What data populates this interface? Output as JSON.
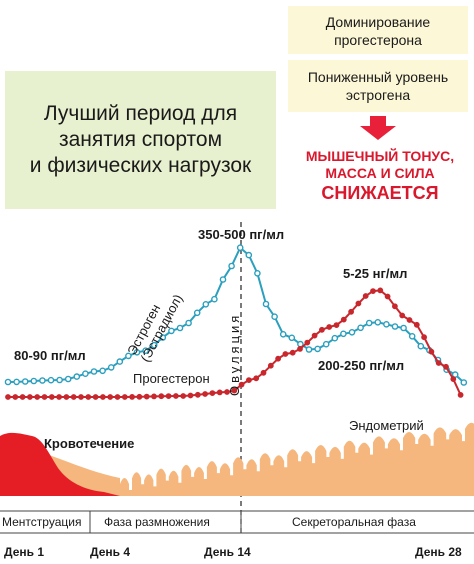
{
  "boxes": {
    "best_period": [
      "Лучший период для",
      "занятия спортом",
      "и физических нагрузок"
    ],
    "progesterone_dominance": [
      "Доминирование",
      "прогестерона"
    ],
    "low_estrogen": [
      "Пониженный уровень",
      "эстрогена"
    ]
  },
  "effect": {
    "line1": "МЫШЕЧНЫЙ ТОНУС,",
    "line2": "МАССА И СИЛА",
    "line3": "СНИЖАЕТСЯ"
  },
  "labels": {
    "estrogen_line1": "Эстроген",
    "estrogen_line2": "(Эстрадиол)",
    "estrogen_peak": "350-500 пг/мл",
    "estrogen_start": "80-90 пг/мл",
    "estrogen_luteal": "200-250 пг/мл",
    "progesterone": "Прогестерон",
    "progesterone_peak": "5-25 нг/мл",
    "ovulation": "Овуляция",
    "endometrium": "Эндометрий",
    "bleeding": "Кровотечение"
  },
  "phases": [
    "Ментструация",
    "Фаза размножения",
    "Секреторальная фаза"
  ],
  "days": [
    "День 1",
    "День 4",
    "День 14",
    "День 28"
  ],
  "colors": {
    "estrogen": "#2b9fbe",
    "progesterone": "#c8282d",
    "bleeding": "#e51e25",
    "endometrium": "#f5b77d",
    "green_box": "#e8f1cf",
    "yellow_box": "#fcf7d6",
    "effect_text": "#d9182d",
    "arrow": "#e8203a"
  }
}
